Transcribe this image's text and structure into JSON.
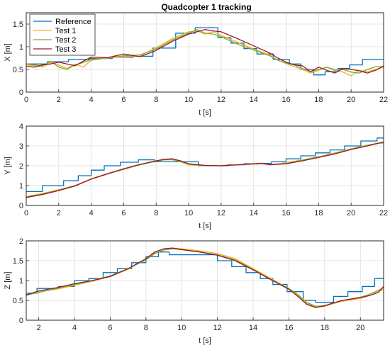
{
  "figure": {
    "title": "Quadcopter 1 tracking"
  },
  "legend": {
    "placement": "top-left of first panel",
    "entries": [
      "Reference",
      "Test 1",
      "Test 2",
      "Test 3"
    ]
  },
  "colors": {
    "Reference": "#0072BD",
    "Test 1": "#EDB120",
    "Test 2": "#77AC30",
    "Test 3": "#A2142F",
    "grid": "#dcdcdc",
    "axes": "#262626"
  },
  "chart_data": [
    {
      "type": "line",
      "title": "Quadcopter 1 tracking",
      "xlabel": "t [s]",
      "ylabel": "X [m]",
      "xlim": [
        0,
        22
      ],
      "ylim": [
        0,
        1.75
      ],
      "xticks": [
        0,
        2,
        4,
        6,
        8,
        10,
        12,
        14,
        16,
        18,
        20,
        22
      ],
      "yticks": [
        0,
        0.5,
        1,
        1.5
      ],
      "ytick_labels": [
        "0",
        "0.5",
        "1",
        "1.5"
      ],
      "grid": true,
      "series": [
        {
          "name": "Reference",
          "step": true,
          "x": [
            0,
            1.3,
            2.6,
            3.9,
            5.3,
            6.6,
            7.8,
            9.2,
            10.4,
            11.8,
            12.6,
            13.4,
            14.2,
            15.2,
            16.2,
            16.9,
            17.7,
            18.4,
            19.2,
            19.9,
            20.7,
            22
          ],
          "y": [
            0.62,
            0.67,
            0.72,
            0.74,
            0.77,
            0.79,
            0.97,
            1.3,
            1.42,
            1.2,
            1.08,
            0.96,
            0.84,
            0.72,
            0.62,
            0.5,
            0.38,
            0.45,
            0.52,
            0.6,
            0.72,
            0.72
          ]
        },
        {
          "name": "Test 1",
          "x": [
            0,
            0.5,
            1,
            1.5,
            2,
            2.5,
            3,
            3.5,
            4,
            5,
            6,
            7,
            8,
            9,
            10,
            10.5,
            11,
            11.5,
            12,
            13,
            14,
            15,
            15.5,
            16,
            16.5,
            17,
            17.5,
            18,
            18.5,
            19,
            19.5,
            20,
            20.5,
            21,
            21.5,
            22
          ],
          "y": [
            0.6,
            0.58,
            0.55,
            0.65,
            0.6,
            0.52,
            0.62,
            0.55,
            0.7,
            0.75,
            0.78,
            0.8,
            0.98,
            1.18,
            1.33,
            1.35,
            1.28,
            1.33,
            1.25,
            1.1,
            0.95,
            0.82,
            0.7,
            0.63,
            0.56,
            0.5,
            0.42,
            0.48,
            0.55,
            0.5,
            0.44,
            0.36,
            0.48,
            0.45,
            0.5,
            0.55
          ]
        },
        {
          "name": "Test 2",
          "x": [
            0,
            0.5,
            1,
            1.5,
            2,
            2.5,
            3,
            3.5,
            4,
            5,
            6,
            7,
            8,
            9,
            10,
            10.5,
            11,
            11.5,
            12,
            13,
            14,
            15,
            15.5,
            16,
            16.5,
            17,
            17.5,
            18,
            18.5,
            19,
            19.5,
            20,
            20.5,
            21,
            21.5,
            22
          ],
          "y": [
            0.62,
            0.6,
            0.58,
            0.68,
            0.55,
            0.5,
            0.6,
            0.65,
            0.72,
            0.76,
            0.8,
            0.82,
            0.95,
            1.15,
            1.3,
            1.38,
            1.3,
            1.28,
            1.22,
            1.06,
            0.93,
            0.8,
            0.7,
            0.64,
            0.6,
            0.52,
            0.45,
            0.5,
            0.55,
            0.48,
            0.5,
            0.44,
            0.42,
            0.5,
            0.56,
            0.56
          ]
        },
        {
          "name": "Test 3",
          "x": [
            0,
            0.5,
            1,
            1.5,
            2,
            2.5,
            3,
            3.5,
            4,
            5,
            6,
            7,
            8,
            9,
            10,
            10.5,
            11,
            11.5,
            12,
            13,
            14,
            15,
            15.5,
            16,
            16.5,
            17,
            17.5,
            18,
            18.5,
            19,
            19.5,
            20,
            20.5,
            21,
            21.5,
            22
          ],
          "y": [
            0.57,
            0.55,
            0.6,
            0.62,
            0.66,
            0.62,
            0.58,
            0.68,
            0.77,
            0.76,
            0.84,
            0.78,
            0.92,
            1.12,
            1.28,
            1.33,
            1.38,
            1.35,
            1.33,
            1.18,
            1.02,
            0.86,
            0.75,
            0.66,
            0.6,
            0.58,
            0.45,
            0.55,
            0.48,
            0.42,
            0.52,
            0.5,
            0.47,
            0.42,
            0.48,
            0.58
          ]
        }
      ]
    },
    {
      "type": "line",
      "title": "",
      "xlabel": "t [s]",
      "ylabel": "Y [m]",
      "xlim": [
        0,
        22
      ],
      "ylim": [
        0,
        4
      ],
      "xticks": [
        0,
        2,
        4,
        6,
        8,
        10,
        12,
        14,
        16,
        18,
        20,
        22
      ],
      "yticks": [
        0,
        1,
        2,
        3,
        4
      ],
      "ytick_labels": [
        "0",
        "1",
        "2",
        "3",
        "4"
      ],
      "grid": true,
      "series": [
        {
          "name": "Reference",
          "step": true,
          "x": [
            0,
            1.0,
            2.3,
            3.2,
            4.0,
            4.8,
            5.8,
            6.9,
            7.9,
            10.6,
            12.4,
            13.4,
            14.2,
            15.1,
            16.0,
            16.9,
            17.8,
            18.7,
            19.6,
            20.6,
            21.6,
            22
          ],
          "y": [
            0.7,
            1.0,
            1.25,
            1.5,
            1.78,
            2.0,
            2.18,
            2.3,
            2.2,
            2.0,
            2.05,
            2.1,
            2.12,
            2.2,
            2.35,
            2.5,
            2.65,
            2.8,
            3.0,
            3.25,
            3.4,
            3.4
          ]
        },
        {
          "name": "Test 1",
          "x": [
            0,
            1,
            2,
            3,
            4,
            5,
            6,
            7,
            8,
            8.5,
            9,
            9.5,
            10,
            11,
            12,
            13,
            14,
            14.5,
            15,
            16,
            17,
            18,
            19,
            20,
            21,
            21.5,
            22
          ],
          "y": [
            0.45,
            0.6,
            0.8,
            1.0,
            1.35,
            1.6,
            1.85,
            2.05,
            2.25,
            2.3,
            2.3,
            2.2,
            2.05,
            2.0,
            2.02,
            2.05,
            2.08,
            2.1,
            2.05,
            2.15,
            2.3,
            2.45,
            2.65,
            2.85,
            3.05,
            3.1,
            3.2
          ]
        },
        {
          "name": "Test 2",
          "x": [
            0,
            1,
            2,
            3,
            4,
            5,
            6,
            7,
            8,
            8.5,
            9,
            9.5,
            10,
            11,
            12,
            13,
            14,
            14.5,
            15,
            16,
            17,
            18,
            19,
            20,
            21,
            21.5,
            22
          ],
          "y": [
            0.42,
            0.58,
            0.78,
            1.0,
            1.32,
            1.58,
            1.82,
            2.05,
            2.22,
            2.3,
            2.32,
            2.22,
            2.08,
            2.0,
            2.01,
            2.05,
            2.1,
            2.12,
            2.06,
            2.12,
            2.28,
            2.45,
            2.62,
            2.85,
            3.02,
            3.12,
            3.15
          ]
        },
        {
          "name": "Test 3",
          "x": [
            0,
            1,
            2,
            3,
            4,
            5,
            6,
            7,
            8,
            8.5,
            9,
            9.5,
            10,
            11,
            12,
            13,
            14,
            14.5,
            15,
            16,
            17,
            18,
            19,
            20,
            21,
            21.5,
            22
          ],
          "y": [
            0.4,
            0.55,
            0.75,
            0.98,
            1.33,
            1.6,
            1.85,
            2.07,
            2.25,
            2.33,
            2.35,
            2.25,
            2.1,
            2.02,
            2.0,
            2.05,
            2.1,
            2.13,
            2.05,
            2.1,
            2.25,
            2.42,
            2.6,
            2.82,
            3.0,
            3.1,
            3.2
          ]
        }
      ]
    },
    {
      "type": "line",
      "title": "",
      "xlabel": "t [s]",
      "ylabel": "Z [m]",
      "xlim": [
        1.3,
        21.3
      ],
      "ylim": [
        0,
        2
      ],
      "xticks": [
        2,
        4,
        6,
        8,
        10,
        12,
        14,
        16,
        18,
        20
      ],
      "yticks": [
        0,
        0.5,
        1,
        1.5,
        2
      ],
      "ytick_labels": [
        "0",
        "0.5",
        "1",
        "1.5",
        "2"
      ],
      "grid": true,
      "series": [
        {
          "name": "Reference",
          "step": true,
          "x": [
            1.3,
            1.9,
            3.1,
            4.0,
            4.8,
            5.6,
            6.4,
            7.2,
            8.0,
            8.7,
            9.3,
            12.0,
            12.8,
            13.6,
            14.4,
            15.1,
            15.9,
            16.8,
            17.5,
            18.5,
            19.3,
            20.1,
            20.8,
            21.3
          ],
          "y": [
            0.68,
            0.8,
            0.85,
            1.0,
            1.05,
            1.2,
            1.3,
            1.45,
            1.6,
            1.72,
            1.65,
            1.5,
            1.35,
            1.2,
            1.05,
            0.9,
            0.72,
            0.5,
            0.45,
            0.6,
            0.72,
            0.85,
            1.05,
            1.05
          ]
        },
        {
          "name": "Test 1",
          "x": [
            1.3,
            2,
            3,
            4,
            5,
            6,
            7,
            8,
            8.5,
            9,
            9.5,
            10,
            11,
            12,
            13,
            14,
            15,
            16,
            16.5,
            17,
            17.5,
            18,
            18.5,
            19,
            20,
            20.5,
            21,
            21.3
          ],
          "y": [
            0.62,
            0.72,
            0.78,
            0.88,
            0.98,
            1.1,
            1.28,
            1.55,
            1.7,
            1.8,
            1.82,
            1.8,
            1.75,
            1.68,
            1.55,
            1.3,
            1.05,
            0.8,
            0.62,
            0.42,
            0.33,
            0.35,
            0.42,
            0.48,
            0.55,
            0.62,
            0.72,
            0.78
          ]
        },
        {
          "name": "Test 2",
          "x": [
            1.3,
            2,
            3,
            4,
            5,
            6,
            7,
            8,
            8.5,
            9,
            9.5,
            10,
            11,
            12,
            13,
            14,
            15,
            16,
            16.5,
            17,
            17.5,
            18,
            18.5,
            19,
            20,
            20.5,
            21,
            21.3
          ],
          "y": [
            0.63,
            0.7,
            0.8,
            0.9,
            1.0,
            1.12,
            1.3,
            1.52,
            1.68,
            1.77,
            1.8,
            1.78,
            1.72,
            1.65,
            1.52,
            1.28,
            1.03,
            0.8,
            0.65,
            0.45,
            0.35,
            0.37,
            0.43,
            0.5,
            0.58,
            0.65,
            0.75,
            0.82
          ]
        },
        {
          "name": "Test 3",
          "x": [
            1.3,
            2,
            3,
            4,
            5,
            6,
            7,
            8,
            8.5,
            9,
            9.5,
            10,
            11,
            12,
            13,
            14,
            15,
            16,
            16.5,
            17,
            17.5,
            18,
            18.5,
            19,
            20,
            20.5,
            21,
            21.3
          ],
          "y": [
            0.64,
            0.74,
            0.82,
            0.92,
            1.0,
            1.1,
            1.3,
            1.55,
            1.72,
            1.8,
            1.82,
            1.78,
            1.72,
            1.64,
            1.5,
            1.27,
            1.02,
            0.78,
            0.6,
            0.4,
            0.32,
            0.36,
            0.44,
            0.5,
            0.57,
            0.62,
            0.7,
            0.85
          ]
        }
      ]
    }
  ]
}
